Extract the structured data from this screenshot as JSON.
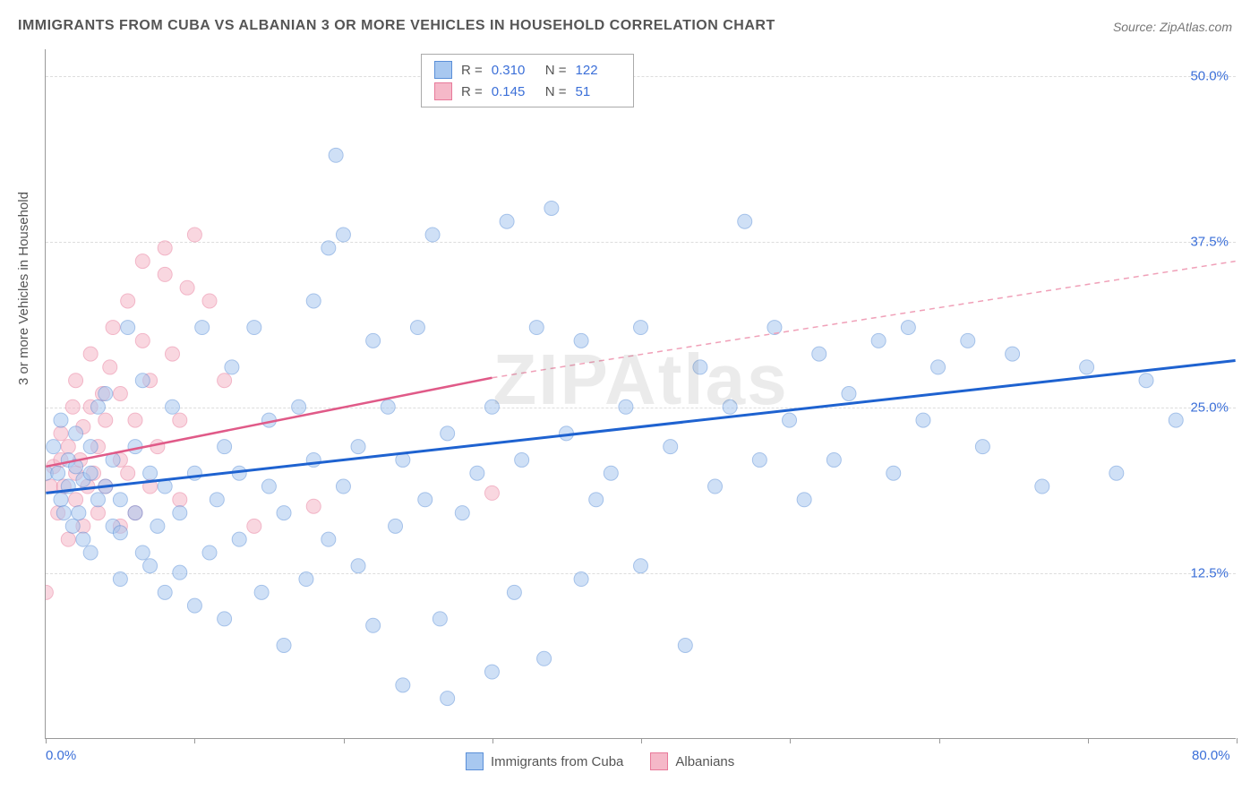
{
  "title": "IMMIGRANTS FROM CUBA VS ALBANIAN 3 OR MORE VEHICLES IN HOUSEHOLD CORRELATION CHART",
  "source": "Source: ZipAtlas.com",
  "watermark": "ZIPAtlas",
  "y_axis_label": "3 or more Vehicles in Household",
  "chart": {
    "type": "scatter",
    "background_color": "#ffffff",
    "grid_color": "#dddddd",
    "xlim": [
      0,
      80
    ],
    "ylim": [
      0,
      52
    ],
    "x_ticks": [
      0,
      10,
      20,
      30,
      40,
      50,
      60,
      70,
      80
    ],
    "x_tick_labels": {
      "0": "0.0%",
      "80": "80.0%"
    },
    "y_ticks": [
      12.5,
      25.0,
      37.5,
      50.0
    ],
    "y_tick_labels": [
      "12.5%",
      "25.0%",
      "37.5%",
      "50.0%"
    ],
    "marker_radius": 8,
    "marker_opacity": 0.55,
    "series": [
      {
        "name": "Immigrants from Cuba",
        "color_fill": "#a8c8f0",
        "color_stroke": "#5a8fd8",
        "R": "0.310",
        "N": "122",
        "trend": {
          "x1": 0,
          "y1": 18.5,
          "x2": 80,
          "y2": 28.5,
          "stroke": "#1e62d0",
          "width": 3,
          "dash": ""
        },
        "points": [
          [
            0,
            20
          ],
          [
            0.5,
            22
          ],
          [
            0.8,
            20
          ],
          [
            1,
            18
          ],
          [
            1,
            24
          ],
          [
            1.2,
            17
          ],
          [
            1.5,
            19
          ],
          [
            1.5,
            21
          ],
          [
            1.8,
            16
          ],
          [
            2,
            20.5
          ],
          [
            2,
            23
          ],
          [
            2.2,
            17
          ],
          [
            2.5,
            15
          ],
          [
            2.5,
            19.5
          ],
          [
            3,
            20
          ],
          [
            3,
            14
          ],
          [
            3,
            22
          ],
          [
            3.5,
            18
          ],
          [
            3.5,
            25
          ],
          [
            4,
            19
          ],
          [
            4,
            26
          ],
          [
            4.5,
            16
          ],
          [
            4.5,
            21
          ],
          [
            5,
            15.5
          ],
          [
            5,
            18
          ],
          [
            5,
            12
          ],
          [
            5.5,
            31
          ],
          [
            6,
            17
          ],
          [
            6,
            22
          ],
          [
            6.5,
            14
          ],
          [
            6.5,
            27
          ],
          [
            7,
            13
          ],
          [
            7,
            20
          ],
          [
            7.5,
            16
          ],
          [
            8,
            11
          ],
          [
            8,
            19
          ],
          [
            8.5,
            25
          ],
          [
            9,
            12.5
          ],
          [
            9,
            17
          ],
          [
            10,
            10
          ],
          [
            10,
            20
          ],
          [
            10.5,
            31
          ],
          [
            11,
            14
          ],
          [
            11.5,
            18
          ],
          [
            12,
            22
          ],
          [
            12,
            9
          ],
          [
            12.5,
            28
          ],
          [
            13,
            15
          ],
          [
            13,
            20
          ],
          [
            14,
            31
          ],
          [
            14.5,
            11
          ],
          [
            15,
            19
          ],
          [
            15,
            24
          ],
          [
            16,
            17
          ],
          [
            16,
            7
          ],
          [
            17,
            25
          ],
          [
            17.5,
            12
          ],
          [
            18,
            21
          ],
          [
            18,
            33
          ],
          [
            19,
            15
          ],
          [
            19,
            37
          ],
          [
            19.5,
            44
          ],
          [
            20,
            38
          ],
          [
            20,
            19
          ],
          [
            21,
            22
          ],
          [
            21,
            13
          ],
          [
            22,
            8.5
          ],
          [
            22,
            30
          ],
          [
            23,
            25
          ],
          [
            23.5,
            16
          ],
          [
            24,
            4
          ],
          [
            24,
            21
          ],
          [
            25,
            31
          ],
          [
            25.5,
            18
          ],
          [
            26,
            38
          ],
          [
            26.5,
            9
          ],
          [
            27,
            3
          ],
          [
            27,
            23
          ],
          [
            28,
            17
          ],
          [
            29,
            20
          ],
          [
            30,
            25
          ],
          [
            30,
            5
          ],
          [
            31,
            39
          ],
          [
            31.5,
            11
          ],
          [
            32,
            21
          ],
          [
            33,
            31
          ],
          [
            33.5,
            6
          ],
          [
            34,
            40
          ],
          [
            35,
            23
          ],
          [
            36,
            12
          ],
          [
            36,
            30
          ],
          [
            37,
            18
          ],
          [
            38,
            20
          ],
          [
            39,
            25
          ],
          [
            40,
            31
          ],
          [
            40,
            13
          ],
          [
            42,
            22
          ],
          [
            43,
            7
          ],
          [
            44,
            28
          ],
          [
            45,
            19
          ],
          [
            46,
            25
          ],
          [
            47,
            39
          ],
          [
            48,
            21
          ],
          [
            49,
            31
          ],
          [
            50,
            24
          ],
          [
            51,
            18
          ],
          [
            52,
            29
          ],
          [
            53,
            21
          ],
          [
            54,
            26
          ],
          [
            56,
            30
          ],
          [
            57,
            20
          ],
          [
            58,
            31
          ],
          [
            59,
            24
          ],
          [
            60,
            28
          ],
          [
            62,
            30
          ],
          [
            63,
            22
          ],
          [
            65,
            29
          ],
          [
            67,
            19
          ],
          [
            70,
            28
          ],
          [
            72,
            20
          ],
          [
            74,
            27
          ],
          [
            76,
            24
          ]
        ]
      },
      {
        "name": "Albanians",
        "color_fill": "#f5b8c8",
        "color_stroke": "#e87a9a",
        "R": "0.145",
        "N": " 51",
        "trend_solid": {
          "x1": 0,
          "y1": 20.5,
          "x2": 30,
          "y2": 27.2,
          "stroke": "#e05a88",
          "width": 2.5,
          "dash": ""
        },
        "trend_dashed": {
          "x1": 30,
          "y1": 27.2,
          "x2": 80,
          "y2": 36.0,
          "stroke": "#f0a0b8",
          "width": 1.5,
          "dash": "6,5"
        },
        "points": [
          [
            0,
            11
          ],
          [
            0.3,
            19
          ],
          [
            0.5,
            20.5
          ],
          [
            0.8,
            17
          ],
          [
            1,
            21
          ],
          [
            1,
            23
          ],
          [
            1.2,
            19
          ],
          [
            1.5,
            15
          ],
          [
            1.5,
            22
          ],
          [
            1.8,
            25
          ],
          [
            2,
            18
          ],
          [
            2,
            20
          ],
          [
            2,
            27
          ],
          [
            2.3,
            21
          ],
          [
            2.5,
            16
          ],
          [
            2.5,
            23.5
          ],
          [
            2.8,
            19
          ],
          [
            3,
            25
          ],
          [
            3,
            29
          ],
          [
            3.2,
            20
          ],
          [
            3.5,
            17
          ],
          [
            3.5,
            22
          ],
          [
            3.8,
            26
          ],
          [
            4,
            19
          ],
          [
            4,
            24
          ],
          [
            4.3,
            28
          ],
          [
            4.5,
            31
          ],
          [
            5,
            16
          ],
          [
            5,
            21
          ],
          [
            5,
            26
          ],
          [
            5.5,
            33
          ],
          [
            5.5,
            20
          ],
          [
            6,
            17
          ],
          [
            6,
            24
          ],
          [
            6.5,
            30
          ],
          [
            6.5,
            36
          ],
          [
            7,
            19
          ],
          [
            7,
            27
          ],
          [
            7.5,
            22
          ],
          [
            8,
            35
          ],
          [
            8,
            37
          ],
          [
            8.5,
            29
          ],
          [
            9,
            18
          ],
          [
            9,
            24
          ],
          [
            9.5,
            34
          ],
          [
            10,
            38
          ],
          [
            11,
            33
          ],
          [
            12,
            27
          ],
          [
            14,
            16
          ],
          [
            18,
            17.5
          ],
          [
            30,
            18.5
          ]
        ]
      }
    ]
  },
  "legend_bottom": [
    {
      "label": "Immigrants from Cuba",
      "fill": "#a8c8f0",
      "stroke": "#5a8fd8"
    },
    {
      "label": "Albanians",
      "fill": "#f5b8c8",
      "stroke": "#e87a9a"
    }
  ]
}
